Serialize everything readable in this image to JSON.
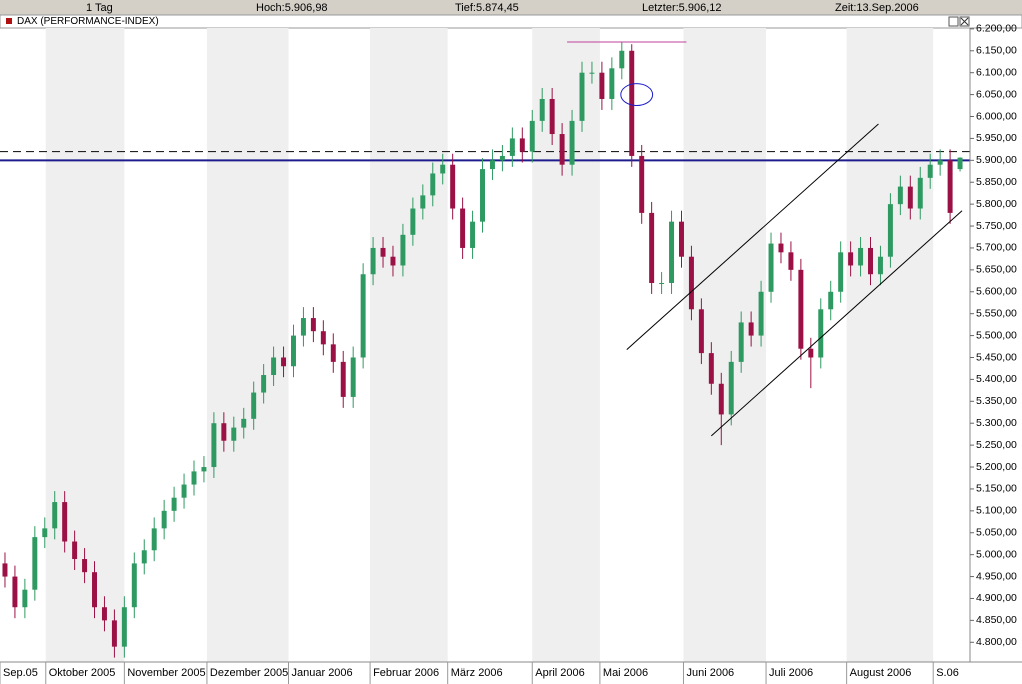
{
  "header": {
    "period": "1 Tag",
    "high": "Hoch:5.906,98",
    "low": "Tief:5.874,45",
    "last": "Letzter:5.906,12",
    "time": "Zeit:13.Sep.2006"
  },
  "chart_data": {
    "type": "candlestick",
    "title": "DAX (PERFORMANCE-INDEX)",
    "up_color": "#2e9a62",
    "down_color": "#9b1145",
    "grid": false,
    "shade_color": "#efefef",
    "xlim": [
      -0.5,
      97
    ],
    "xticks": [
      {
        "value": -0.5,
        "label": "Sep.05"
      },
      {
        "value": 4.1,
        "label": "Oktober 2005"
      },
      {
        "value": 12,
        "label": "November 2005"
      },
      {
        "value": 20.3,
        "label": "Dezember 2005"
      },
      {
        "value": 28.5,
        "label": "Januar 2006"
      },
      {
        "value": 36.7,
        "label": "Februar 2006"
      },
      {
        "value": 44.5,
        "label": "März 2006"
      },
      {
        "value": 53,
        "label": "April 2006"
      },
      {
        "value": 59.8,
        "label": "Mai 2006"
      },
      {
        "value": 68.2,
        "label": "Juni 2006"
      },
      {
        "value": 76.5,
        "label": "Juli 2006"
      },
      {
        "value": 84.6,
        "label": "August 2006"
      },
      {
        "value": 93.3,
        "label": "S.06"
      }
    ],
    "ylim": [
      4755,
      6202
    ],
    "yticks": [
      {
        "value": 4800,
        "label": "4.800,00"
      },
      {
        "value": 4850,
        "label": "4.850,00"
      },
      {
        "value": 4900,
        "label": "4.900,00"
      },
      {
        "value": 4950,
        "label": "4.950,00"
      },
      {
        "value": 5000,
        "label": "5.000,00"
      },
      {
        "value": 5050,
        "label": "5.050,00"
      },
      {
        "value": 5100,
        "label": "5.100,00"
      },
      {
        "value": 5150,
        "label": "5.150,00"
      },
      {
        "value": 5200,
        "label": "5.200,00"
      },
      {
        "value": 5250,
        "label": "5.250,00"
      },
      {
        "value": 5300,
        "label": "5.300,00"
      },
      {
        "value": 5350,
        "label": "5.350,00"
      },
      {
        "value": 5400,
        "label": "5.400,00"
      },
      {
        "value": 5450,
        "label": "5.450,00"
      },
      {
        "value": 5500,
        "label": "5.500,00"
      },
      {
        "value": 5550,
        "label": "5.550,00"
      },
      {
        "value": 5600,
        "label": "5.600,00"
      },
      {
        "value": 5650,
        "label": "5.650,00"
      },
      {
        "value": 5700,
        "label": "5.700,00"
      },
      {
        "value": 5750,
        "label": "5.750,00"
      },
      {
        "value": 5800,
        "label": "5.800,00"
      },
      {
        "value": 5850,
        "label": "5.850,00"
      },
      {
        "value": 5900,
        "label": "5.900,00"
      },
      {
        "value": 5950,
        "label": "5.950,00"
      },
      {
        "value": 6000,
        "label": "6.000,00"
      },
      {
        "value": 6050,
        "label": "6.050,00"
      },
      {
        "value": 6100,
        "label": "6.100,00"
      },
      {
        "value": 6150,
        "label": "6.150,00"
      },
      {
        "value": 6200,
        "label": "6.200,00"
      }
    ],
    "open": [
      4980,
      4950,
      4880,
      4920,
      5040,
      5060,
      5120,
      5030,
      4990,
      4960,
      4880,
      4850,
      4790,
      4880,
      4980,
      5010,
      5060,
      5100,
      5130,
      5160,
      5190,
      5200,
      5300,
      5260,
      5290,
      5310,
      5370,
      5410,
      5450,
      5430,
      5500,
      5540,
      5510,
      5480,
      5440,
      5360,
      5450,
      5640,
      5700,
      5680,
      5660,
      5730,
      5790,
      5820,
      5870,
      5890,
      5790,
      5700,
      5760,
      5880,
      5900,
      5910,
      5950,
      5920,
      5990,
      6040,
      5960,
      5890,
      5990,
      6100,
      6100,
      6040,
      6110,
      6150,
      5910,
      5780,
      5620,
      5620,
      5760,
      5680,
      5560,
      5460,
      5390,
      5320,
      5440,
      5530,
      5500,
      5600,
      5710,
      5690,
      5650,
      5470,
      5450,
      5560,
      5600,
      5690,
      5660,
      5700,
      5640,
      5680,
      5800,
      5840,
      5790,
      5860,
      5890,
      5900,
      5880
    ],
    "high": [
      5005,
      4975,
      4945,
      5065,
      5085,
      5145,
      5145,
      5055,
      5015,
      4985,
      4905,
      4875,
      4905,
      5005,
      5035,
      5085,
      5125,
      5155,
      5185,
      5215,
      5225,
      5325,
      5325,
      5315,
      5335,
      5395,
      5435,
      5475,
      5475,
      5525,
      5565,
      5565,
      5535,
      5505,
      5465,
      5475,
      5665,
      5725,
      5725,
      5705,
      5755,
      5815,
      5845,
      5895,
      5915,
      5915,
      5815,
      5785,
      5905,
      5925,
      5935,
      5975,
      5975,
      6015,
      6065,
      6065,
      5985,
      6015,
      6125,
      6125,
      6125,
      6135,
      6170,
      6165,
      5935,
      5805,
      5645,
      5785,
      5785,
      5705,
      5585,
      5485,
      5415,
      5465,
      5555,
      5555,
      5625,
      5735,
      5735,
      5715,
      5675,
      5495,
      5585,
      5625,
      5715,
      5715,
      5725,
      5725,
      5705,
      5825,
      5865,
      5865,
      5885,
      5915,
      5925,
      5925,
      5906.98
    ],
    "low": [
      4925,
      4855,
      4855,
      4895,
      5015,
      5035,
      5005,
      4965,
      4935,
      4855,
      4825,
      4765,
      4765,
      4855,
      4955,
      4985,
      5035,
      5075,
      5105,
      5135,
      5165,
      5175,
      5235,
      5235,
      5265,
      5285,
      5345,
      5385,
      5405,
      5405,
      5475,
      5485,
      5455,
      5415,
      5335,
      5335,
      5425,
      5615,
      5655,
      5635,
      5635,
      5705,
      5765,
      5795,
      5845,
      5765,
      5675,
      5675,
      5735,
      5855,
      5875,
      5885,
      5895,
      5895,
      5965,
      5935,
      5865,
      5865,
      5965,
      6075,
      6015,
      6015,
      6085,
      5885,
      5755,
      5595,
      5595,
      5595,
      5655,
      5535,
      5435,
      5365,
      5250,
      5295,
      5415,
      5475,
      5475,
      5575,
      5665,
      5625,
      5445,
      5380,
      5425,
      5535,
      5575,
      5635,
      5635,
      5615,
      5615,
      5655,
      5775,
      5765,
      5765,
      5835,
      5865,
      5755,
      5874.45
    ],
    "close": [
      4950,
      4880,
      4920,
      5040,
      5060,
      5120,
      5030,
      4990,
      4960,
      4880,
      4850,
      4790,
      4880,
      4980,
      5010,
      5060,
      5100,
      5130,
      5160,
      5190,
      5200,
      5300,
      5260,
      5290,
      5310,
      5370,
      5410,
      5450,
      5430,
      5500,
      5540,
      5510,
      5480,
      5440,
      5360,
      5450,
      5640,
      5700,
      5680,
      5660,
      5730,
      5790,
      5820,
      5870,
      5890,
      5790,
      5700,
      5760,
      5880,
      5900,
      5910,
      5950,
      5920,
      5990,
      6040,
      5960,
      5890,
      5990,
      6100,
      6100,
      6040,
      6110,
      6150,
      5910,
      5780,
      5620,
      5620,
      5760,
      5680,
      5560,
      5460,
      5390,
      5320,
      5440,
      5530,
      5500,
      5600,
      5710,
      5690,
      5650,
      5470,
      5450,
      5560,
      5600,
      5690,
      5660,
      5700,
      5640,
      5680,
      5800,
      5840,
      5790,
      5860,
      5890,
      5900,
      5780,
      5906.12
    ],
    "hlines": [
      {
        "value": 5900,
        "color": "#1c1c8c",
        "dashed": false
      },
      {
        "value": 5920,
        "color": "#222222",
        "dashed": true
      }
    ],
    "segments": [
      {
        "x": [
          56.5,
          68.5
        ],
        "y": [
          6170,
          6170
        ],
        "color": "#c0409c"
      },
      {
        "x": [
          62.5,
          87.8
        ],
        "y": [
          5468,
          5983
        ],
        "color": "#000000"
      },
      {
        "x": [
          71,
          96.2
        ],
        "y": [
          5271,
          5785
        ],
        "color": "#000000"
      }
    ],
    "ellipses": [
      {
        "x": 63.5,
        "y": 6050,
        "rx": 1.6,
        "ry": 25,
        "color": "#1c1ccc"
      }
    ]
  }
}
